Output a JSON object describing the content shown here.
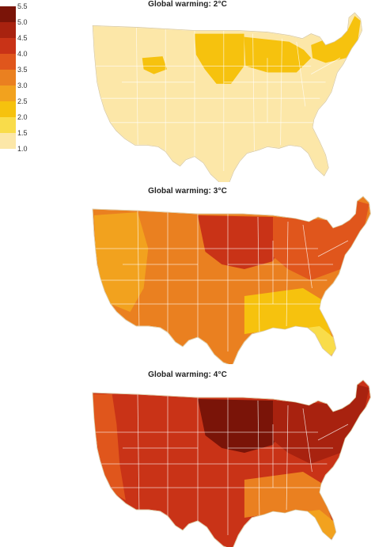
{
  "legend": {
    "ticks": [
      "5.5",
      "5.0",
      "4.5",
      "4.0",
      "3.5",
      "3.0",
      "2.5",
      "2.0",
      "1.5",
      "1.0"
    ],
    "bins": [
      {
        "color": "#7a1408"
      },
      {
        "color": "#a8220f"
      },
      {
        "color": "#c93317"
      },
      {
        "color": "#e0561c"
      },
      {
        "color": "#ea8020"
      },
      {
        "color": "#f2a21e"
      },
      {
        "color": "#f6c20e"
      },
      {
        "color": "#f9dc4a"
      },
      {
        "color": "#fce7a8"
      }
    ]
  },
  "maps": [
    {
      "title": "Global warming: 2°C",
      "base_color": "#fce7a8",
      "regions": [
        {
          "name": "northern-plains",
          "color": "#f6c20e"
        },
        {
          "name": "great-lakes",
          "color": "#f6c20e"
        },
        {
          "name": "new-england",
          "color": "#f6c20e"
        },
        {
          "name": "rockies",
          "color": "#f6c20e"
        }
      ]
    },
    {
      "title": "Global warming: 3°C",
      "base_color": "#ea8020",
      "regions": [
        {
          "name": "north-central",
          "color": "#c93317"
        },
        {
          "name": "northeast",
          "color": "#e0561c"
        },
        {
          "name": "west",
          "color": "#f2a21e"
        },
        {
          "name": "southeast",
          "color": "#f6c20e"
        },
        {
          "name": "florida",
          "color": "#f9dc4a"
        }
      ]
    },
    {
      "title": "Global warming: 4°C",
      "base_color": "#c93317",
      "regions": [
        {
          "name": "north-central",
          "color": "#7a1408"
        },
        {
          "name": "northeast",
          "color": "#a8220f"
        },
        {
          "name": "west-coast",
          "color": "#e0561c"
        },
        {
          "name": "southeast",
          "color": "#ea8020"
        },
        {
          "name": "florida",
          "color": "#f2a21e"
        }
      ]
    }
  ]
}
